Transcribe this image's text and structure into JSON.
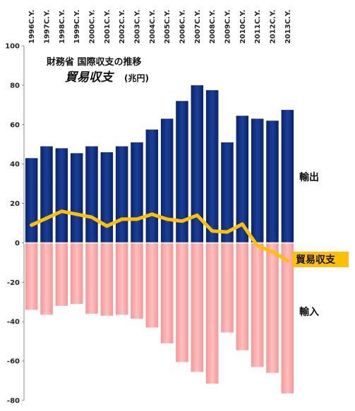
{
  "chart_data": {
    "type": "bar",
    "title": "財務省 国際収支の推移",
    "subtitle": "貿易収支",
    "subtitle_unit": "(兆円)",
    "categories": [
      "1996C.Y.",
      "1997C.Y.",
      "1998C.Y.",
      "1999C.Y.",
      "2000C.Y.",
      "2001C.Y.",
      "2002C.Y.",
      "2003C.Y.",
      "2004C.Y.",
      "2005C.Y.",
      "2006C.Y.",
      "2007C.Y.",
      "2008C.Y.",
      "2009C.Y.",
      "2010C.Y.",
      "2011C.Y.",
      "2012C.Y.",
      "2013C.Y."
    ],
    "series": [
      {
        "name": "輸出",
        "type": "bar",
        "color": "#0d2d7c",
        "values": [
          43,
          49,
          48,
          45.5,
          49,
          46,
          49,
          51,
          57.5,
          63,
          72,
          80,
          77.5,
          51,
          64.5,
          63,
          62,
          67.5
        ]
      },
      {
        "name": "輸入",
        "type": "bar",
        "color": "#ffa6a6",
        "values": [
          -34,
          -36.5,
          -32,
          -31,
          -36,
          -37,
          -36.5,
          -38.5,
          -43,
          -51,
          -60.5,
          -65.5,
          -71.5,
          -45.5,
          -54.5,
          -63,
          -66,
          -76.5
        ]
      },
      {
        "name": "貿易収支",
        "type": "line",
        "color": "#ffc000",
        "values": [
          9,
          12.5,
          16,
          14.5,
          13,
          8.5,
          12,
          12,
          14.5,
          12,
          11,
          14,
          6,
          5.5,
          9.5,
          -1.5,
          -4.5,
          -9
        ]
      }
    ],
    "ylim": [
      -80,
      100
    ],
    "yticks": [
      100,
      80,
      60,
      40,
      20,
      0,
      -20,
      -40,
      -60,
      -80
    ],
    "annotations": {
      "export_label": "輸出",
      "import_label": "輸入",
      "balance_label": "貿易収支"
    }
  }
}
